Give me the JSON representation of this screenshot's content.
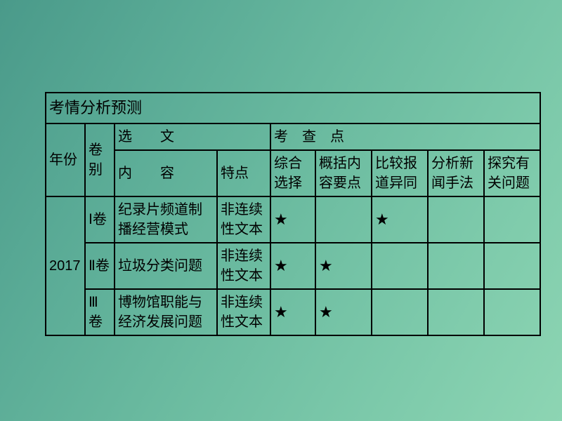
{
  "title": "考情分析预测",
  "headers": {
    "year": "年份",
    "vol": "卷别",
    "essay_group": "选　　文",
    "exam_group": "考　查　点",
    "content": "内　　容",
    "feature": "特点",
    "k1": "综合选择",
    "k2": "概括内容要点",
    "k3": "比较报道异同",
    "k4": "分析新闻手法",
    "k5": "探究有关问题"
  },
  "year": "2017",
  "rows": [
    {
      "vol": "Ⅰ卷",
      "content": "纪录片频道制播经营模式",
      "feature": "非连续性文本",
      "marks": {
        "k1": "★",
        "k2": "",
        "k3": "★",
        "k4": "",
        "k5": ""
      }
    },
    {
      "vol": "Ⅱ卷",
      "content": "垃圾分类问题",
      "feature": "非连续性文本",
      "marks": {
        "k1": "★",
        "k2": "★",
        "k3": "",
        "k4": "",
        "k5": ""
      }
    },
    {
      "vol": "Ⅲ卷",
      "content": "博物馆职能与经济发展问题",
      "feature": "非连续性文本",
      "marks": {
        "k1": "★",
        "k2": "★",
        "k3": "",
        "k4": "",
        "k5": ""
      }
    }
  ],
  "style": {
    "border_color": "#000000",
    "text_color": "#000000",
    "font_size_body": 20,
    "font_size_title": 22,
    "background_gradient": [
      "#4a9a8a",
      "#8dd5b3"
    ],
    "star_char": "★"
  }
}
